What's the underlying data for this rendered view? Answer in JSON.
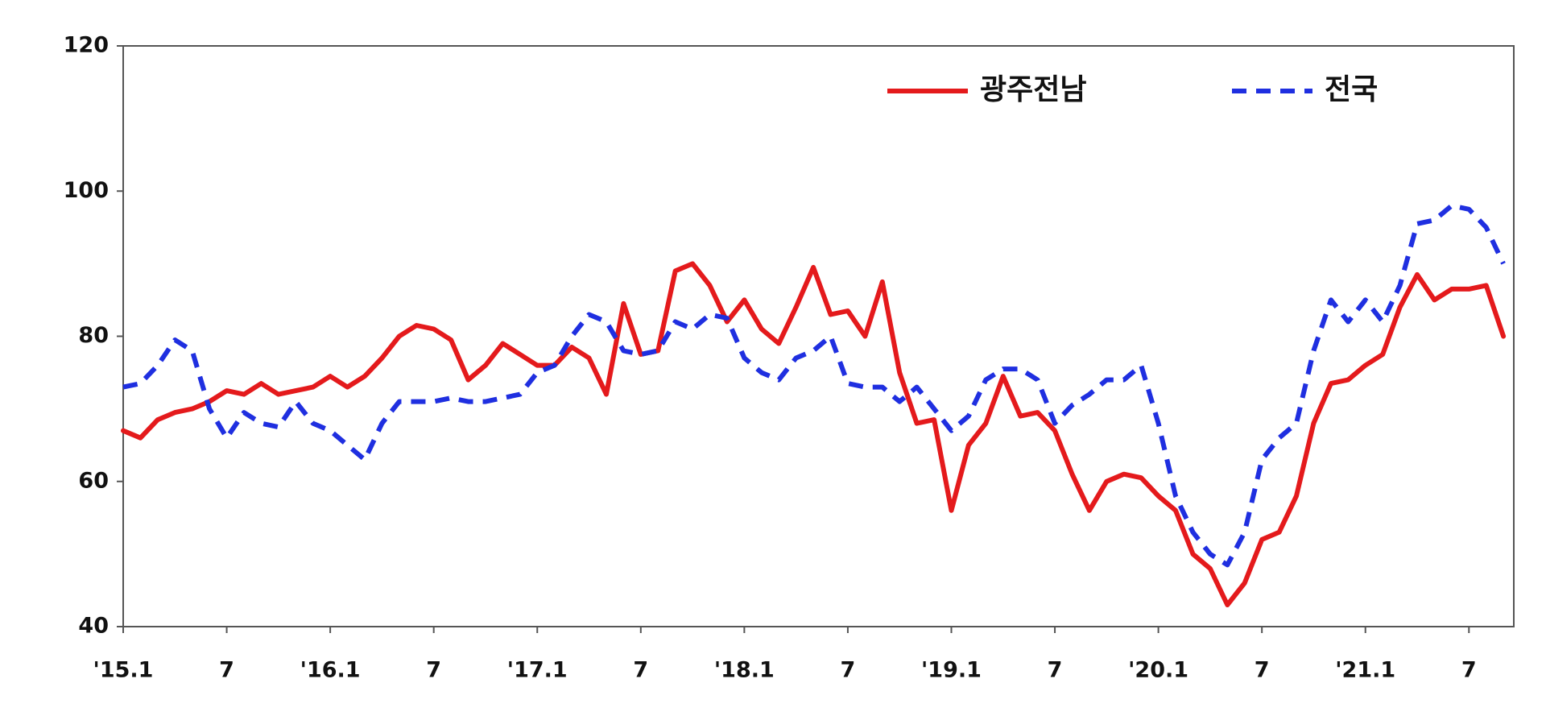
{
  "chart_data": {
    "type": "line",
    "categories": [
      "'15.1",
      null,
      null,
      null,
      null,
      null,
      "7",
      null,
      null,
      null,
      null,
      null,
      "'16.1",
      null,
      null,
      null,
      null,
      null,
      "7",
      null,
      null,
      null,
      null,
      null,
      "'17.1",
      null,
      null,
      null,
      null,
      null,
      "7",
      null,
      null,
      null,
      null,
      null,
      "'18.1",
      null,
      null,
      null,
      null,
      null,
      "7",
      null,
      null,
      null,
      null,
      null,
      "'19.1",
      null,
      null,
      null,
      null,
      null,
      "7",
      null,
      null,
      null,
      null,
      null,
      "'20.1",
      null,
      null,
      null,
      null,
      null,
      "7",
      null,
      null,
      null,
      null,
      null,
      "'21.1",
      null,
      null,
      null,
      null,
      null,
      "7",
      null,
      null
    ],
    "series": [
      {
        "name": "광주전남",
        "color": "#e41a1c",
        "dash": false,
        "values": [
          67,
          66,
          68.5,
          69.5,
          70,
          71,
          72.5,
          72,
          73.5,
          72,
          72.5,
          73,
          74.5,
          73,
          74.5,
          77,
          80,
          81.5,
          81,
          79.5,
          74,
          76,
          79,
          77.5,
          76,
          76,
          78.5,
          77,
          72,
          84.5,
          77.5,
          78,
          89,
          90,
          87,
          82,
          85,
          81,
          79,
          84,
          89.5,
          83,
          83.5,
          80,
          87.5,
          75,
          68,
          68.5,
          56,
          65,
          68,
          74.5,
          69,
          69.5,
          67,
          61,
          56,
          60,
          61,
          60.5,
          58,
          56,
          50,
          48,
          43,
          46,
          52,
          53,
          58,
          68,
          73.5,
          74,
          76,
          77.5,
          84,
          88.5,
          85,
          86.5,
          86.5,
          87,
          80
        ]
      },
      {
        "name": "전국",
        "color": "#1f2fe0",
        "dash": true,
        "values": [
          73,
          73.5,
          76,
          79.5,
          78,
          70,
          66,
          69.5,
          68,
          67.5,
          71,
          68,
          67,
          65,
          63,
          68,
          71,
          71,
          71,
          71.5,
          71,
          71,
          71.5,
          72,
          75,
          76,
          80,
          83,
          82,
          78,
          77.5,
          78,
          82,
          81,
          83,
          82.5,
          77,
          75,
          74,
          77,
          78,
          80,
          73.5,
          73,
          73,
          71,
          73,
          70,
          67,
          69,
          74,
          75.5,
          75.5,
          74,
          68,
          70.5,
          72,
          74,
          74,
          76,
          68,
          58,
          53,
          50,
          48.5,
          53,
          63,
          66,
          68,
          78,
          85,
          82,
          85,
          82,
          87,
          95.5,
          96,
          98,
          97.5,
          95,
          90
        ]
      }
    ],
    "ylim": [
      40,
      120
    ],
    "yticks": [
      40,
      60,
      80,
      100,
      120
    ],
    "legend": "top-right"
  }
}
